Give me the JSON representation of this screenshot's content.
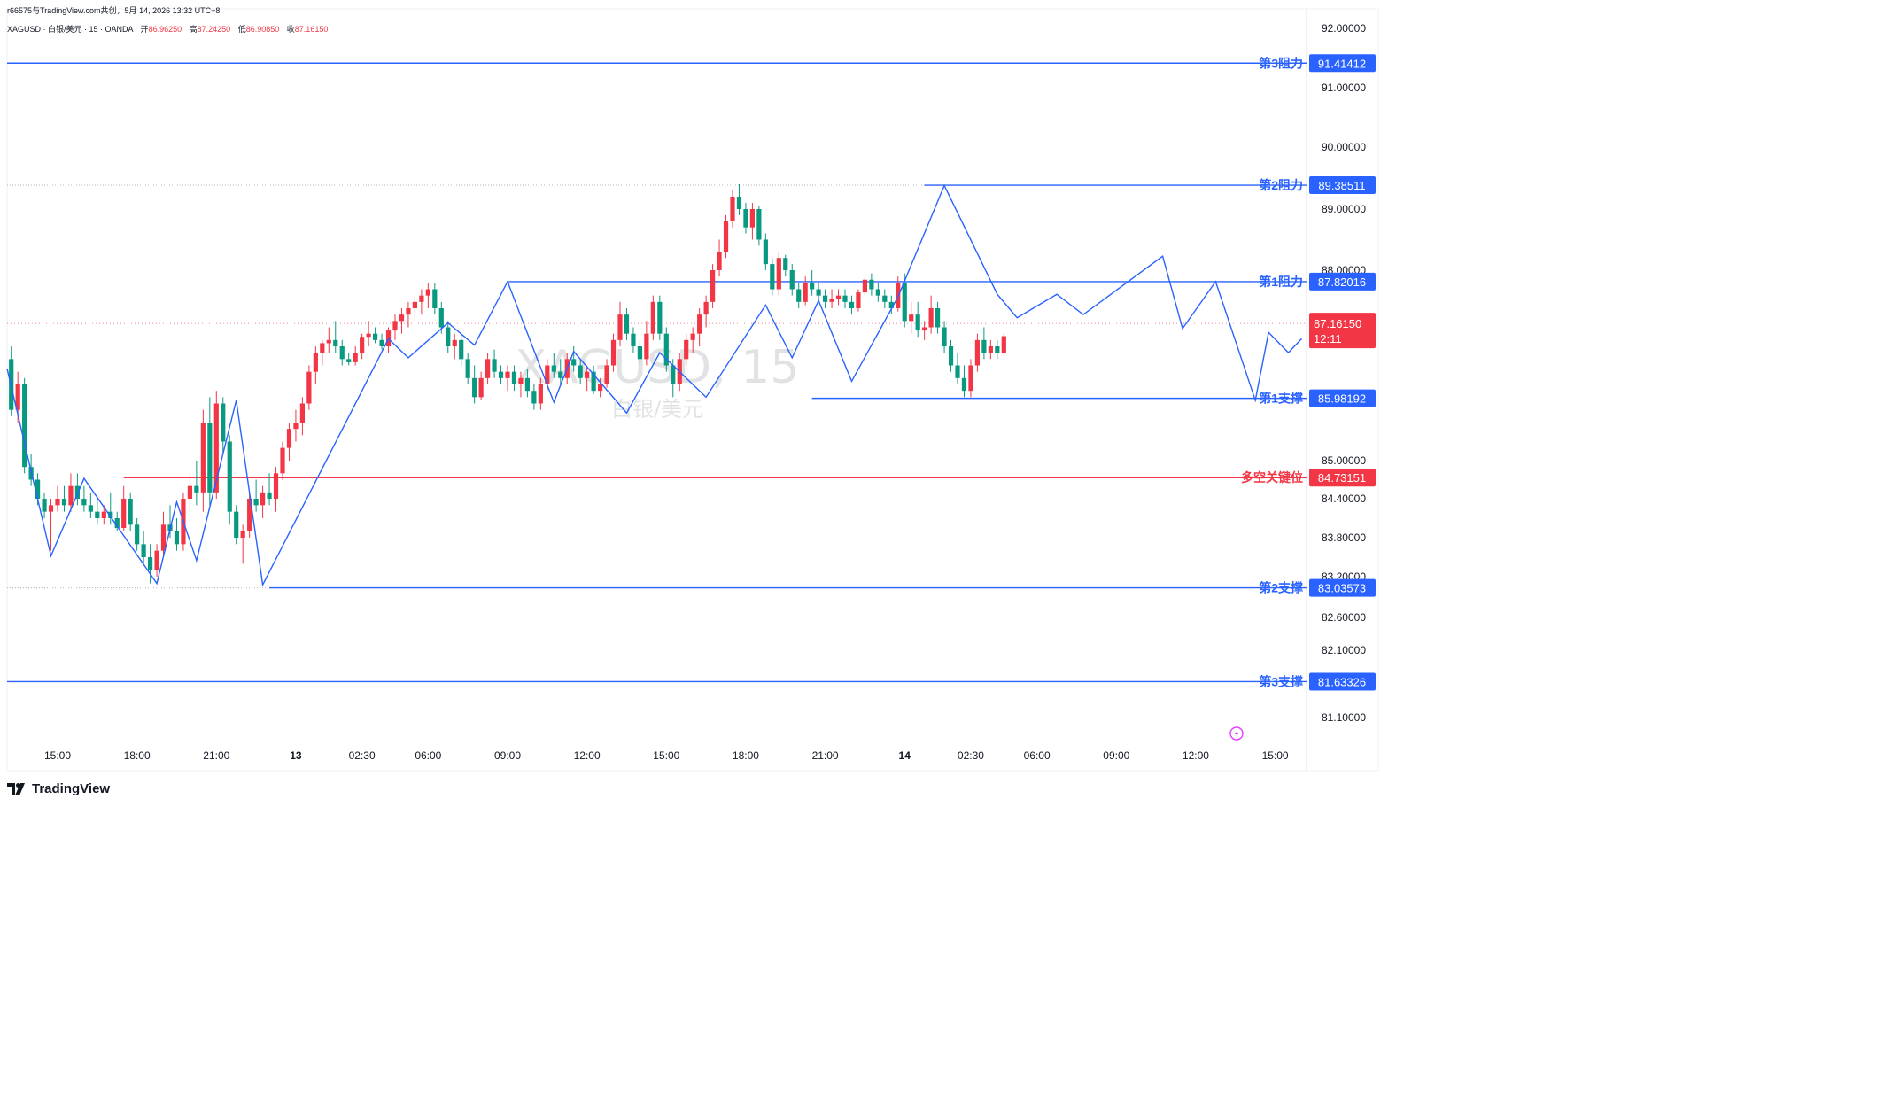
{
  "header": {
    "share_line": "r66575与TradingView.com共创，5月 14, 2026 13:32 UTC+8",
    "symbol_line": "XAGUSD · 白银/美元 · 15 · OANDA",
    "open_label": "开",
    "open_value": "86.96250",
    "high_label": "高",
    "high_value": "87.24250",
    "low_label": "低",
    "low_value": "86.90850",
    "close_label": "收",
    "close_value": "87.16150"
  },
  "watermark": {
    "symbol": "XAGUSD, 15",
    "name": "白银/美元"
  },
  "brand": {
    "name": "TradingView",
    "icon": "tradingview-logo-icon"
  },
  "colors": {
    "up": "#f23645",
    "down": "#089981",
    "level": "#2962ff",
    "pivot": "#f23645",
    "zigzag": "#2962ff"
  },
  "chart_data": {
    "type": "candlestick",
    "symbol": "XAGUSD",
    "timeframe": "15",
    "y_ticks": [
      92.0,
      91.0,
      90.0,
      89.0,
      88.0,
      85.0,
      84.4,
      83.8,
      83.2,
      82.6,
      82.1,
      81.1
    ],
    "y_tick_labels": [
      "92.00000",
      "91.00000",
      "90.00000",
      "89.00000",
      "88.00000",
      "85.00000",
      "84.40000",
      "83.80000",
      "83.20000",
      "82.60000",
      "82.10000",
      "81.10000"
    ],
    "x_tick_labels": [
      {
        "label": "15:00",
        "bar": 0,
        "bold": false
      },
      {
        "label": "18:00",
        "bar": 12,
        "bold": false
      },
      {
        "label": "21:00",
        "bar": 24,
        "bold": false
      },
      {
        "label": "13",
        "bar": 36,
        "bold": true
      },
      {
        "label": "02:30",
        "bar": 46,
        "bold": false
      },
      {
        "label": "06:00",
        "bar": 56,
        "bold": false
      },
      {
        "label": "09:00",
        "bar": 68,
        "bold": false
      },
      {
        "label": "12:00",
        "bar": 80,
        "bold": false
      },
      {
        "label": "15:00",
        "bar": 92,
        "bold": false
      },
      {
        "label": "18:00",
        "bar": 104,
        "bold": false
      },
      {
        "label": "21:00",
        "bar": 116,
        "bold": false
      },
      {
        "label": "14",
        "bar": 128,
        "bold": true
      },
      {
        "label": "02:30",
        "bar": 138,
        "bold": false
      },
      {
        "label": "06:00",
        "bar": 148,
        "bold": false
      },
      {
        "label": "09:00",
        "bar": 160,
        "bold": false
      },
      {
        "label": "12:00",
        "bar": 172,
        "bold": false
      },
      {
        "label": "15:00",
        "bar": 184,
        "bold": false
      }
    ],
    "levels": [
      {
        "name": "第3阻力",
        "value": 91.41412,
        "value_label": "91.41412",
        "kind": "resistance",
        "start_bar": -8
      },
      {
        "name": "第2阻力",
        "value": 89.38511,
        "value_label": "89.38511",
        "kind": "resistance",
        "start_bar": 131
      },
      {
        "name": "第1阻力",
        "value": 87.82016,
        "value_label": "87.82016",
        "kind": "resistance",
        "start_bar": 68
      },
      {
        "name": "第1支撑",
        "value": 85.98192,
        "value_label": "85.98192",
        "kind": "support",
        "start_bar": 114
      },
      {
        "name": "多空关键位",
        "value": 84.73151,
        "value_label": "84.73151",
        "kind": "pivot",
        "start_bar": 10
      },
      {
        "name": "第2支撑",
        "value": 83.03573,
        "value_label": "83.03573",
        "kind": "support",
        "start_bar": 32
      },
      {
        "name": "第3支撑",
        "value": 81.63326,
        "value_label": "81.63326",
        "kind": "support",
        "start_bar": -8
      }
    ],
    "last_price": {
      "value": 87.1615,
      "value_label": "87.16150",
      "countdown": "12:11"
    },
    "zigzag": [
      [
        -8,
        86.45
      ],
      [
        -1,
        83.52
      ],
      [
        4,
        84.72
      ],
      [
        15,
        83.1
      ],
      [
        18,
        84.35
      ],
      [
        21,
        83.45
      ],
      [
        27,
        85.95
      ],
      [
        31,
        83.08
      ],
      [
        46,
        86.1
      ],
      [
        50,
        86.92
      ],
      [
        53,
        86.62
      ],
      [
        59,
        87.17
      ],
      [
        63,
        86.82
      ],
      [
        68,
        87.82
      ],
      [
        75,
        85.92
      ],
      [
        78,
        86.72
      ],
      [
        86,
        85.75
      ],
      [
        91,
        86.7
      ],
      [
        96,
        86.2
      ],
      [
        98,
        86.0
      ],
      [
        107,
        87.45
      ],
      [
        111,
        86.62
      ],
      [
        115,
        87.52
      ],
      [
        120,
        86.25
      ],
      [
        127,
        87.58
      ],
      [
        134,
        89.38
      ],
      [
        142,
        87.62
      ],
      [
        145,
        87.25
      ],
      [
        151,
        87.62
      ],
      [
        155,
        87.3
      ],
      [
        167,
        88.23
      ],
      [
        170,
        87.08
      ],
      [
        175,
        87.82
      ],
      [
        181,
        85.95
      ],
      [
        183,
        87.02
      ],
      [
        186,
        86.7
      ],
      [
        188,
        86.92
      ]
    ],
    "candles": [
      [
        86.8,
        86.9,
        86.5,
        86.6
      ],
      [
        86.6,
        86.8,
        85.7,
        85.8
      ],
      [
        85.8,
        86.4,
        85.6,
        86.2
      ],
      [
        86.2,
        86.3,
        84.8,
        84.9
      ],
      [
        84.9,
        85.1,
        84.6,
        84.7
      ],
      [
        84.7,
        84.8,
        84.3,
        84.4
      ],
      [
        84.4,
        84.5,
        84.1,
        84.2
      ],
      [
        84.2,
        84.4,
        83.6,
        84.3
      ],
      [
        84.3,
        84.6,
        84.2,
        84.4
      ],
      [
        84.4,
        84.6,
        84.2,
        84.3
      ],
      [
        84.3,
        84.8,
        84.2,
        84.6
      ],
      [
        84.6,
        84.8,
        84.3,
        84.4
      ],
      [
        84.4,
        84.6,
        84.2,
        84.3
      ],
      [
        84.3,
        84.5,
        84.1,
        84.2
      ],
      [
        84.2,
        84.4,
        84.0,
        84.1
      ],
      [
        84.1,
        84.3,
        84.0,
        84.2
      ],
      [
        84.2,
        84.5,
        84.0,
        84.1
      ],
      [
        84.1,
        84.2,
        83.9,
        83.95
      ],
      [
        83.95,
        84.6,
        83.9,
        84.4
      ],
      [
        84.4,
        84.5,
        83.9,
        84.0
      ],
      [
        84.0,
        84.1,
        83.6,
        83.7
      ],
      [
        83.7,
        83.9,
        83.4,
        83.5
      ],
      [
        83.5,
        83.7,
        83.1,
        83.3
      ],
      [
        83.3,
        83.7,
        83.2,
        83.6
      ],
      [
        83.6,
        84.2,
        83.5,
        84.0
      ],
      [
        84.0,
        84.3,
        83.8,
        83.9
      ],
      [
        83.9,
        84.1,
        83.6,
        83.7
      ],
      [
        83.7,
        84.5,
        83.6,
        84.4
      ],
      [
        84.4,
        84.8,
        84.2,
        84.6
      ],
      [
        84.6,
        85.0,
        84.3,
        84.5
      ],
      [
        84.5,
        85.8,
        84.2,
        85.6
      ],
      [
        85.6,
        86.0,
        84.3,
        84.5
      ],
      [
        84.5,
        86.1,
        84.4,
        85.9
      ],
      [
        85.9,
        86.0,
        85.1,
        85.3
      ],
      [
        85.3,
        85.4,
        84.0,
        84.2
      ],
      [
        84.2,
        84.3,
        83.7,
        83.8
      ],
      [
        83.8,
        84.0,
        83.4,
        83.9
      ],
      [
        83.9,
        84.5,
        83.8,
        84.4
      ],
      [
        84.4,
        84.7,
        84.2,
        84.3
      ],
      [
        84.3,
        84.6,
        84.1,
        84.5
      ],
      [
        84.5,
        84.8,
        84.3,
        84.4
      ],
      [
        84.4,
        84.9,
        84.2,
        84.8
      ],
      [
        84.8,
        85.3,
        84.7,
        85.2
      ],
      [
        85.2,
        85.6,
        85.0,
        85.5
      ],
      [
        85.5,
        85.8,
        85.3,
        85.6
      ],
      [
        85.6,
        86.0,
        85.4,
        85.9
      ],
      [
        85.9,
        86.5,
        85.8,
        86.4
      ],
      [
        86.4,
        86.8,
        86.2,
        86.7
      ],
      [
        86.7,
        86.9,
        86.5,
        86.85
      ],
      [
        86.85,
        87.1,
        86.7,
        86.9
      ],
      [
        86.9,
        87.2,
        86.7,
        86.8
      ],
      [
        86.8,
        86.9,
        86.5,
        86.6
      ],
      [
        86.6,
        86.7,
        86.5,
        86.55
      ],
      [
        86.55,
        86.8,
        86.5,
        86.7
      ],
      [
        86.7,
        87.0,
        86.6,
        86.95
      ],
      [
        86.95,
        87.2,
        86.8,
        87.0
      ],
      [
        87.0,
        87.1,
        86.85,
        86.9
      ],
      [
        86.9,
        87.0,
        86.75,
        86.8
      ],
      [
        86.8,
        87.1,
        86.7,
        87.05
      ],
      [
        87.05,
        87.3,
        86.9,
        87.2
      ],
      [
        87.2,
        87.4,
        87.0,
        87.3
      ],
      [
        87.3,
        87.5,
        87.1,
        87.4
      ],
      [
        87.4,
        87.6,
        87.2,
        87.5
      ],
      [
        87.5,
        87.7,
        87.3,
        87.6
      ],
      [
        87.6,
        87.8,
        87.4,
        87.7
      ],
      [
        87.7,
        87.8,
        87.3,
        87.4
      ],
      [
        87.4,
        87.5,
        87.0,
        87.1
      ],
      [
        87.1,
        87.2,
        86.7,
        86.8
      ],
      [
        86.8,
        87.0,
        86.6,
        86.9
      ],
      [
        86.9,
        87.0,
        86.5,
        86.6
      ],
      [
        86.6,
        86.7,
        86.2,
        86.3
      ],
      [
        86.3,
        86.5,
        85.9,
        86.0
      ],
      [
        86.0,
        86.4,
        85.95,
        86.3
      ],
      [
        86.3,
        86.7,
        86.2,
        86.6
      ],
      [
        86.6,
        86.75,
        86.3,
        86.4
      ],
      [
        86.4,
        86.5,
        86.2,
        86.3
      ],
      [
        86.3,
        86.5,
        86.1,
        86.4
      ],
      [
        86.4,
        86.5,
        86.1,
        86.2
      ],
      [
        86.2,
        86.4,
        86.0,
        86.3
      ],
      [
        86.3,
        86.45,
        86.0,
        86.1
      ],
      [
        86.1,
        86.2,
        85.8,
        85.9
      ],
      [
        85.9,
        86.3,
        85.8,
        86.2
      ],
      [
        86.2,
        86.6,
        86.1,
        86.5
      ],
      [
        86.5,
        86.7,
        86.3,
        86.4
      ],
      [
        86.4,
        86.6,
        86.2,
        86.3
      ],
      [
        86.3,
        86.7,
        86.2,
        86.6
      ],
      [
        86.6,
        86.8,
        86.4,
        86.5
      ],
      [
        86.5,
        86.6,
        86.2,
        86.3
      ],
      [
        86.3,
        86.5,
        86.1,
        86.4
      ],
      [
        86.4,
        86.5,
        86.05,
        86.1
      ],
      [
        86.1,
        86.3,
        86.0,
        86.2
      ],
      [
        86.2,
        86.6,
        86.15,
        86.5
      ],
      [
        86.5,
        87.0,
        86.4,
        86.9
      ],
      [
        86.9,
        87.5,
        86.8,
        87.3
      ],
      [
        87.3,
        87.4,
        86.9,
        87.0
      ],
      [
        87.0,
        87.1,
        86.7,
        86.8
      ],
      [
        86.8,
        86.9,
        86.5,
        86.6
      ],
      [
        86.6,
        87.2,
        86.5,
        87.0
      ],
      [
        87.0,
        87.6,
        86.9,
        87.5
      ],
      [
        87.5,
        87.6,
        86.9,
        87.0
      ],
      [
        87.0,
        87.1,
        86.4,
        86.5
      ],
      [
        86.5,
        86.6,
        86.0,
        86.2
      ],
      [
        86.2,
        86.7,
        86.1,
        86.6
      ],
      [
        86.6,
        87.0,
        86.5,
        86.9
      ],
      [
        86.9,
        87.1,
        86.7,
        87.0
      ],
      [
        87.0,
        87.4,
        86.8,
        87.3
      ],
      [
        87.3,
        87.6,
        87.1,
        87.5
      ],
      [
        87.5,
        88.1,
        87.4,
        88.0
      ],
      [
        88.0,
        88.5,
        87.9,
        88.3
      ],
      [
        88.3,
        88.9,
        88.2,
        88.8
      ],
      [
        88.8,
        89.3,
        88.7,
        89.2
      ],
      [
        89.2,
        89.4,
        88.9,
        89.0
      ],
      [
        89.0,
        89.1,
        88.6,
        88.7
      ],
      [
        88.7,
        89.1,
        88.5,
        89.0
      ],
      [
        89.0,
        89.05,
        88.4,
        88.5
      ],
      [
        88.5,
        88.6,
        88.0,
        88.1
      ],
      [
        88.1,
        88.2,
        87.6,
        87.7
      ],
      [
        87.7,
        88.3,
        87.6,
        88.2
      ],
      [
        88.2,
        88.25,
        87.9,
        88.0
      ],
      [
        88.0,
        88.1,
        87.6,
        87.7
      ],
      [
        87.7,
        87.8,
        87.4,
        87.5
      ],
      [
        87.5,
        87.9,
        87.45,
        87.8
      ],
      [
        87.8,
        88.0,
        87.6,
        87.7
      ],
      [
        87.7,
        87.8,
        87.5,
        87.6
      ],
      [
        87.6,
        87.7,
        87.4,
        87.5
      ],
      [
        87.5,
        87.7,
        87.4,
        87.55
      ],
      [
        87.55,
        87.7,
        87.45,
        87.6
      ],
      [
        87.6,
        87.7,
        87.4,
        87.5
      ],
      [
        87.5,
        87.6,
        87.3,
        87.4
      ],
      [
        87.4,
        87.7,
        87.35,
        87.65
      ],
      [
        87.65,
        87.9,
        87.6,
        87.85
      ],
      [
        87.85,
        87.95,
        87.6,
        87.7
      ],
      [
        87.7,
        87.8,
        87.5,
        87.6
      ],
      [
        87.6,
        87.7,
        87.4,
        87.5
      ],
      [
        87.5,
        87.6,
        87.3,
        87.4
      ],
      [
        87.4,
        87.9,
        87.35,
        87.8
      ],
      [
        87.8,
        87.95,
        87.1,
        87.2
      ],
      [
        87.2,
        87.5,
        87.0,
        87.3
      ],
      [
        87.3,
        87.5,
        86.95,
        87.05
      ],
      [
        87.05,
        87.2,
        86.9,
        87.1
      ],
      [
        87.1,
        87.6,
        87.0,
        87.4
      ],
      [
        87.4,
        87.5,
        87.0,
        87.1
      ],
      [
        87.1,
        87.2,
        86.7,
        86.8
      ],
      [
        86.8,
        86.9,
        86.4,
        86.5
      ],
      [
        86.5,
        86.7,
        86.2,
        86.3
      ],
      [
        86.3,
        86.5,
        86.0,
        86.1
      ],
      [
        86.1,
        86.6,
        86.0,
        86.5
      ],
      [
        86.5,
        87.0,
        86.4,
        86.9
      ],
      [
        86.9,
        87.1,
        86.6,
        86.7
      ],
      [
        86.7,
        86.9,
        86.6,
        86.8
      ],
      [
        86.8,
        86.9,
        86.6,
        86.7
      ],
      [
        86.7,
        87.0,
        86.65,
        86.96
      ]
    ]
  }
}
